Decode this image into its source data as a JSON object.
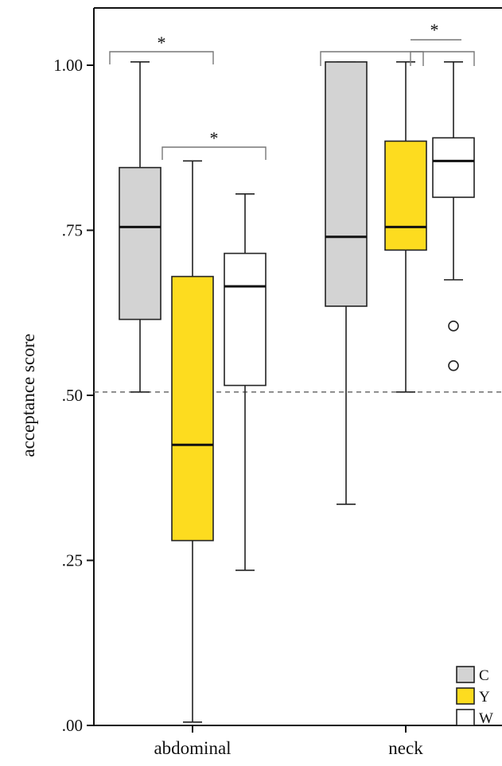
{
  "chart_data": {
    "type": "box",
    "title": "",
    "xlabel": "",
    "ylabel": "acceptance score",
    "ylim": [
      0,
      1.0
    ],
    "yticks": [
      {
        "value": 0.0,
        "label": ".00"
      },
      {
        "value": 0.25,
        "label": ".25"
      },
      {
        "value": 0.5,
        "label": ".50"
      },
      {
        "value": 0.75,
        "label": ".75"
      },
      {
        "value": 1.0,
        "label": "1.00"
      }
    ],
    "categories": [
      "abdominal",
      "neck"
    ],
    "reference_line": {
      "value": 0.505,
      "style": "dashed"
    },
    "legend_position": "bottom-right",
    "series": [
      {
        "name": "C",
        "color": "#d3d3d3",
        "boxes": [
          {
            "category": "abdominal",
            "whisker_low": 0.505,
            "q1": 0.615,
            "median": 0.755,
            "q3": 0.845,
            "whisker_high": 1.005,
            "outliers": []
          },
          {
            "category": "neck",
            "whisker_low": 0.335,
            "q1": 0.635,
            "median": 0.74,
            "q3": 1.005,
            "whisker_high": 1.005,
            "outliers": []
          }
        ]
      },
      {
        "name": "Y",
        "color": "#fddc1f",
        "boxes": [
          {
            "category": "abdominal",
            "whisker_low": 0.005,
            "q1": 0.28,
            "median": 0.425,
            "q3": 0.68,
            "whisker_high": 0.855,
            "outliers": []
          },
          {
            "category": "neck",
            "whisker_low": 0.505,
            "q1": 0.72,
            "median": 0.755,
            "q3": 0.885,
            "whisker_high": 1.005,
            "outliers": []
          }
        ]
      },
      {
        "name": "W",
        "color": "#ffffff",
        "boxes": [
          {
            "category": "abdominal",
            "whisker_low": 0.235,
            "q1": 0.515,
            "median": 0.665,
            "q3": 0.715,
            "whisker_high": 0.805,
            "outliers": []
          },
          {
            "category": "neck",
            "whisker_low": 0.675,
            "q1": 0.8,
            "median": 0.855,
            "q3": 0.89,
            "whisker_high": 1.005,
            "outliers": [
              0.605,
              0.545
            ]
          }
        ]
      }
    ],
    "significance": [
      {
        "category": "abdominal",
        "from_series": "C",
        "to_series": "Y",
        "label": "*"
      },
      {
        "category": "abdominal",
        "from_series": "Y",
        "to_series": "W",
        "label": "*"
      },
      {
        "category": "neck",
        "from_series": "C",
        "to_series": "Y",
        "label": ""
      },
      {
        "category": "neck",
        "from_series": "Y",
        "to_series": "W",
        "label": "*"
      }
    ]
  }
}
